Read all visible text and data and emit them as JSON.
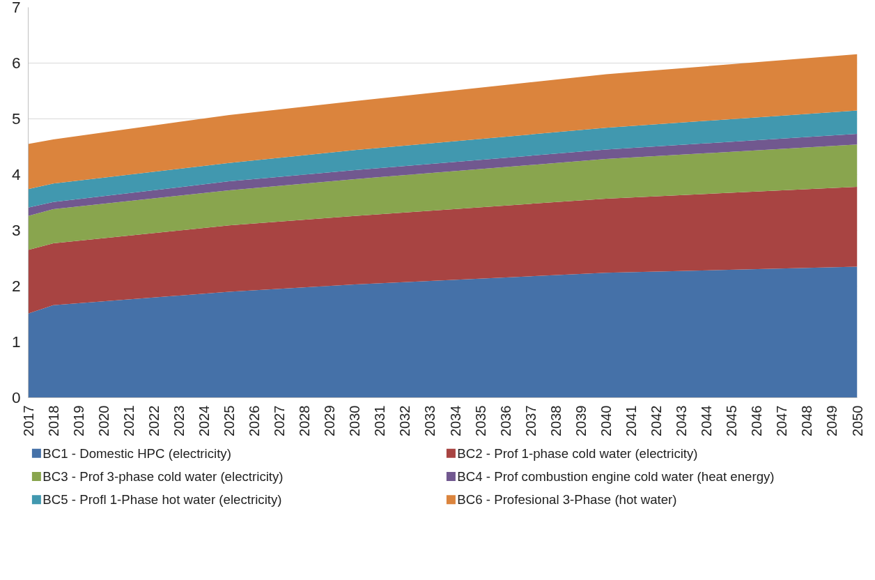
{
  "chart_data": {
    "type": "area",
    "stacked": true,
    "x": [
      2017,
      2018,
      2025,
      2030,
      2040,
      2050
    ],
    "xlim": [
      2017,
      2050
    ],
    "xticks": [
      2017,
      2018,
      2019,
      2020,
      2021,
      2022,
      2023,
      2024,
      2025,
      2026,
      2027,
      2028,
      2029,
      2030,
      2031,
      2032,
      2033,
      2034,
      2035,
      2036,
      2037,
      2038,
      2039,
      2040,
      2041,
      2042,
      2043,
      2044,
      2045,
      2046,
      2047,
      2048,
      2049,
      2050
    ],
    "ylim": [
      0,
      7
    ],
    "yticks": [
      0,
      1,
      2,
      3,
      4,
      5,
      6,
      7
    ],
    "grid": "y",
    "legend": "bottom",
    "series": [
      {
        "name": "BC1 - Domestic HPC (electricity)",
        "color": "#4571a8",
        "values": [
          1.51,
          1.66,
          1.9,
          2.03,
          2.24,
          2.35
        ]
      },
      {
        "name": "BC2 - Prof 1-phase cold water (electricity)",
        "color": "#a84442",
        "values": [
          1.14,
          1.11,
          1.19,
          1.23,
          1.33,
          1.43
        ]
      },
      {
        "name": "BC3 - Prof 3-phase cold water (electricity)",
        "color": "#89a54e",
        "values": [
          0.61,
          0.61,
          0.63,
          0.66,
          0.71,
          0.76
        ]
      },
      {
        "name": "BC4 - Prof  combustion engine cold water (heat energy)",
        "color": "#71588f",
        "values": [
          0.15,
          0.13,
          0.16,
          0.16,
          0.17,
          0.19
        ]
      },
      {
        "name": "BC5 - Profl 1-Phase hot water (electricity)",
        "color": "#4198af",
        "values": [
          0.33,
          0.33,
          0.33,
          0.36,
          0.39,
          0.42
        ]
      },
      {
        "name": "BC6 - Profesional 3-Phase (hot water)",
        "color": "#db843d",
        "values": [
          0.81,
          0.79,
          0.86,
          0.88,
          0.96,
          1.01
        ]
      }
    ]
  }
}
